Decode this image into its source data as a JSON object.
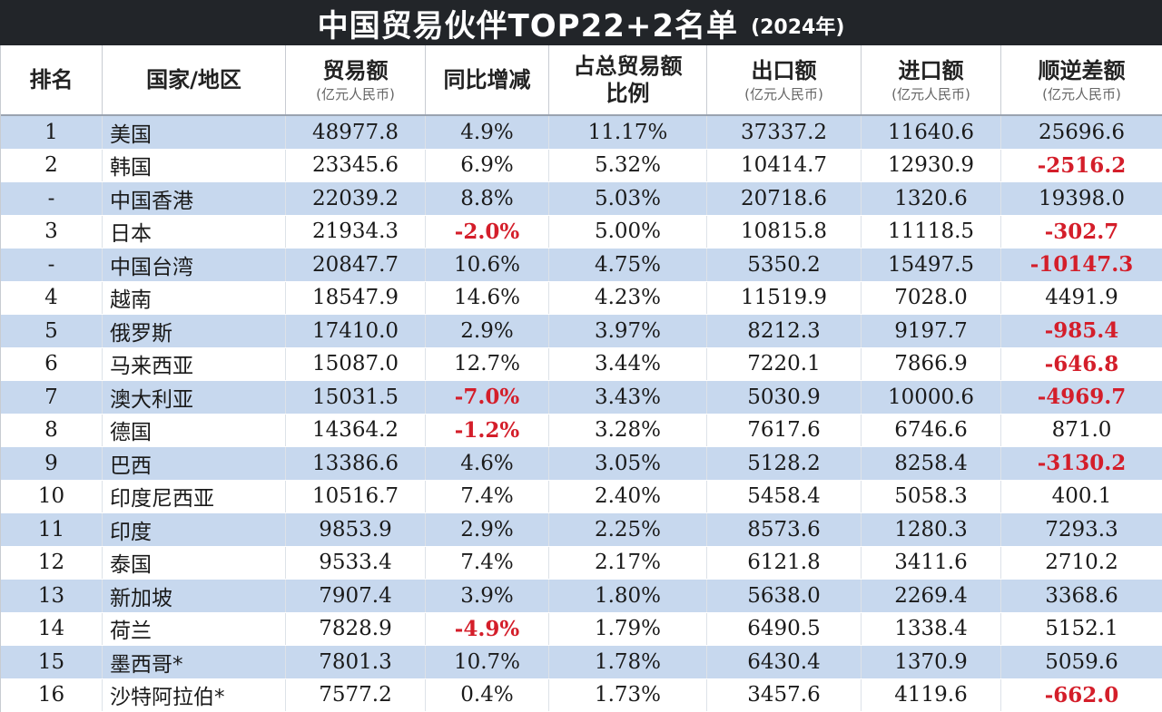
{
  "title": {
    "main": "中国贸易伙伴TOP22+2名单",
    "sub": "(2024年)"
  },
  "headers": [
    {
      "label": "排名",
      "unit": ""
    },
    {
      "label": "国家/地区",
      "unit": ""
    },
    {
      "label": "贸易额",
      "unit": "(亿元人民币)"
    },
    {
      "label": "同比增减",
      "unit": ""
    },
    {
      "label": "占总贸易额",
      "unit": "比例"
    },
    {
      "label": "出口额",
      "unit": "(亿元人民币)"
    },
    {
      "label": "进口额",
      "unit": "(亿元人民币)"
    },
    {
      "label": "顺逆差额",
      "unit": "(亿元人民币)"
    }
  ],
  "rows": [
    {
      "rank": "1",
      "name": "美国",
      "trade": "48977.8",
      "yoy": "4.9%",
      "share": "11.17%",
      "export": "37337.2",
      "import": "11640.6",
      "balance": "25696.6"
    },
    {
      "rank": "2",
      "name": "韩国",
      "trade": "23345.6",
      "yoy": "6.9%",
      "share": "5.32%",
      "export": "10414.7",
      "import": "12930.9",
      "balance": "-2516.2"
    },
    {
      "rank": "-",
      "name": "中国香港",
      "trade": "22039.2",
      "yoy": "8.8%",
      "share": "5.03%",
      "export": "20718.6",
      "import": "1320.6",
      "balance": "19398.0"
    },
    {
      "rank": "3",
      "name": "日本",
      "trade": "21934.3",
      "yoy": "-2.0%",
      "share": "5.00%",
      "export": "10815.8",
      "import": "11118.5",
      "balance": "-302.7"
    },
    {
      "rank": "-",
      "name": "中国台湾",
      "trade": "20847.7",
      "yoy": "10.6%",
      "share": "4.75%",
      "export": "5350.2",
      "import": "15497.5",
      "balance": "-10147.3"
    },
    {
      "rank": "4",
      "name": "越南",
      "trade": "18547.9",
      "yoy": "14.6%",
      "share": "4.23%",
      "export": "11519.9",
      "import": "7028.0",
      "balance": "4491.9"
    },
    {
      "rank": "5",
      "name": "俄罗斯",
      "trade": "17410.0",
      "yoy": "2.9%",
      "share": "3.97%",
      "export": "8212.3",
      "import": "9197.7",
      "balance": "-985.4"
    },
    {
      "rank": "6",
      "name": "马来西亚",
      "trade": "15087.0",
      "yoy": "12.7%",
      "share": "3.44%",
      "export": "7220.1",
      "import": "7866.9",
      "balance": "-646.8"
    },
    {
      "rank": "7",
      "name": "澳大利亚",
      "trade": "15031.5",
      "yoy": "-7.0%",
      "share": "3.43%",
      "export": "5030.9",
      "import": "10000.6",
      "balance": "-4969.7"
    },
    {
      "rank": "8",
      "name": "德国",
      "trade": "14364.2",
      "yoy": "-1.2%",
      "share": "3.28%",
      "export": "7617.6",
      "import": "6746.6",
      "balance": "871.0"
    },
    {
      "rank": "9",
      "name": "巴西",
      "trade": "13386.6",
      "yoy": "4.6%",
      "share": "3.05%",
      "export": "5128.2",
      "import": "8258.4",
      "balance": "-3130.2"
    },
    {
      "rank": "10",
      "name": "印度尼西亚",
      "trade": "10516.7",
      "yoy": "7.4%",
      "share": "2.40%",
      "export": "5458.4",
      "import": "5058.3",
      "balance": "400.1"
    },
    {
      "rank": "11",
      "name": "印度",
      "trade": "9853.9",
      "yoy": "2.9%",
      "share": "2.25%",
      "export": "8573.6",
      "import": "1280.3",
      "balance": "7293.3"
    },
    {
      "rank": "12",
      "name": "泰国",
      "trade": "9533.4",
      "yoy": "7.4%",
      "share": "2.17%",
      "export": "6121.8",
      "import": "3411.6",
      "balance": "2710.2"
    },
    {
      "rank": "13",
      "name": "新加坡",
      "trade": "7907.4",
      "yoy": "3.9%",
      "share": "1.80%",
      "export": "5638.0",
      "import": "2269.4",
      "balance": "3368.6"
    },
    {
      "rank": "14",
      "name": "荷兰",
      "trade": "7828.9",
      "yoy": "-4.9%",
      "share": "1.79%",
      "export": "6490.5",
      "import": "1338.4",
      "balance": "5152.1"
    },
    {
      "rank": "15",
      "name": "墨西哥*",
      "trade": "7801.3",
      "yoy": "10.7%",
      "share": "1.78%",
      "export": "6430.4",
      "import": "1370.9",
      "balance": "5059.6"
    },
    {
      "rank": "16",
      "name": "沙特阿拉伯*",
      "trade": "7577.2",
      "yoy": "0.4%",
      "share": "1.73%",
      "export": "3457.6",
      "import": "4119.6",
      "balance": "-662.0"
    }
  ]
}
